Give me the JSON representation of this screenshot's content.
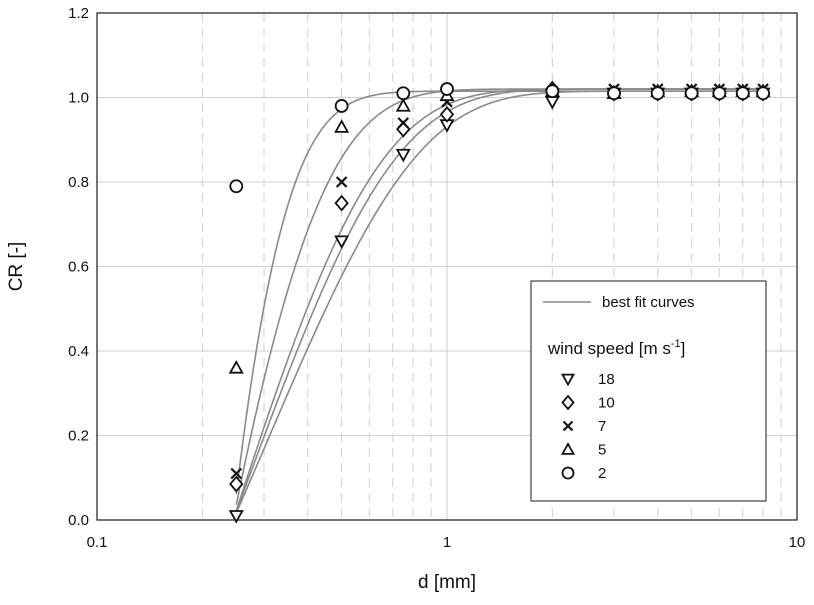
{
  "chart_data": {
    "type": "scatter",
    "title": "",
    "xlabel": "d [mm]",
    "ylabel": "CR [-]",
    "x_scale": "log",
    "xlim": [
      0.1,
      10
    ],
    "ylim": [
      0.0,
      1.2
    ],
    "x_ticks": [
      {
        "value": 0.1,
        "label": "0.1"
      },
      {
        "value": 1,
        "label": "1"
      },
      {
        "value": 10,
        "label": "10"
      }
    ],
    "y_ticks": [
      {
        "value": 0.0,
        "label": "0.0"
      },
      {
        "value": 0.2,
        "label": "0.2"
      },
      {
        "value": 0.4,
        "label": "0.4"
      },
      {
        "value": 0.6,
        "label": "0.6"
      },
      {
        "value": 0.8,
        "label": "0.8"
      },
      {
        "value": 1.0,
        "label": "1.0"
      },
      {
        "value": 1.2,
        "label": "1.2"
      }
    ],
    "grid": {
      "major": true,
      "minor_x": true,
      "minor_style": "dashed"
    },
    "legend": {
      "placement": "lower-right",
      "line_label": "best fit curves",
      "title_main": "wind speed [m s",
      "title_sup": "-1",
      "title_end": "]"
    },
    "series": [
      {
        "name": "18",
        "marker": "triangle-down",
        "points": [
          [
            0.25,
            0.01
          ],
          [
            0.5,
            0.66
          ],
          [
            0.75,
            0.865
          ],
          [
            1.0,
            0.935
          ],
          [
            2.0,
            0.99
          ],
          [
            3.0,
            1.01
          ],
          [
            4.0,
            1.01
          ],
          [
            5.0,
            1.01
          ],
          [
            6.0,
            1.01
          ],
          [
            7.0,
            1.01
          ],
          [
            8.0,
            1.01
          ]
        ],
        "fit": {
          "a": 1.015,
          "b": 3.3
        }
      },
      {
        "name": "10",
        "marker": "diamond",
        "points": [
          [
            0.25,
            0.085
          ],
          [
            0.5,
            0.75
          ],
          [
            0.75,
            0.925
          ],
          [
            1.0,
            0.96
          ],
          [
            2.0,
            1.02
          ],
          [
            3.0,
            1.01
          ],
          [
            4.0,
            1.01
          ],
          [
            5.0,
            1.01
          ],
          [
            6.0,
            1.01
          ],
          [
            7.0,
            1.01
          ],
          [
            8.0,
            1.01
          ]
        ],
        "fit": {
          "a": 1.02,
          "b": 3.9
        }
      },
      {
        "name": "7",
        "marker": "x",
        "points": [
          [
            0.25,
            0.11
          ],
          [
            0.5,
            0.8
          ],
          [
            0.75,
            0.94
          ],
          [
            1.0,
            0.99
          ],
          [
            2.0,
            1.015
          ],
          [
            3.0,
            1.02
          ],
          [
            4.0,
            1.02
          ],
          [
            5.0,
            1.02
          ],
          [
            6.0,
            1.02
          ],
          [
            7.0,
            1.02
          ],
          [
            8.0,
            1.02
          ]
        ],
        "fit": {
          "a": 1.02,
          "b": 4.4
        }
      },
      {
        "name": "5",
        "marker": "triangle-up",
        "points": [
          [
            0.25,
            0.36
          ],
          [
            0.5,
            0.93
          ],
          [
            0.75,
            0.98
          ],
          [
            1.0,
            1.005
          ],
          [
            2.0,
            1.015
          ],
          [
            3.0,
            1.01
          ],
          [
            4.0,
            1.015
          ],
          [
            5.0,
            1.015
          ],
          [
            6.0,
            1.015
          ],
          [
            7.0,
            1.015
          ],
          [
            8.0,
            1.015
          ]
        ],
        "fit": {
          "a": 1.02,
          "b": 7.2
        }
      },
      {
        "name": "2",
        "marker": "circle",
        "points": [
          [
            0.25,
            0.79
          ],
          [
            0.5,
            0.98
          ],
          [
            0.75,
            1.01
          ],
          [
            1.0,
            1.02
          ],
          [
            2.0,
            1.015
          ],
          [
            3.0,
            1.01
          ],
          [
            4.0,
            1.01
          ],
          [
            5.0,
            1.01
          ],
          [
            6.0,
            1.01
          ],
          [
            7.0,
            1.01
          ],
          [
            8.0,
            1.01
          ]
        ],
        "fit": {
          "a": 1.015,
          "b": 12.5
        }
      }
    ]
  }
}
